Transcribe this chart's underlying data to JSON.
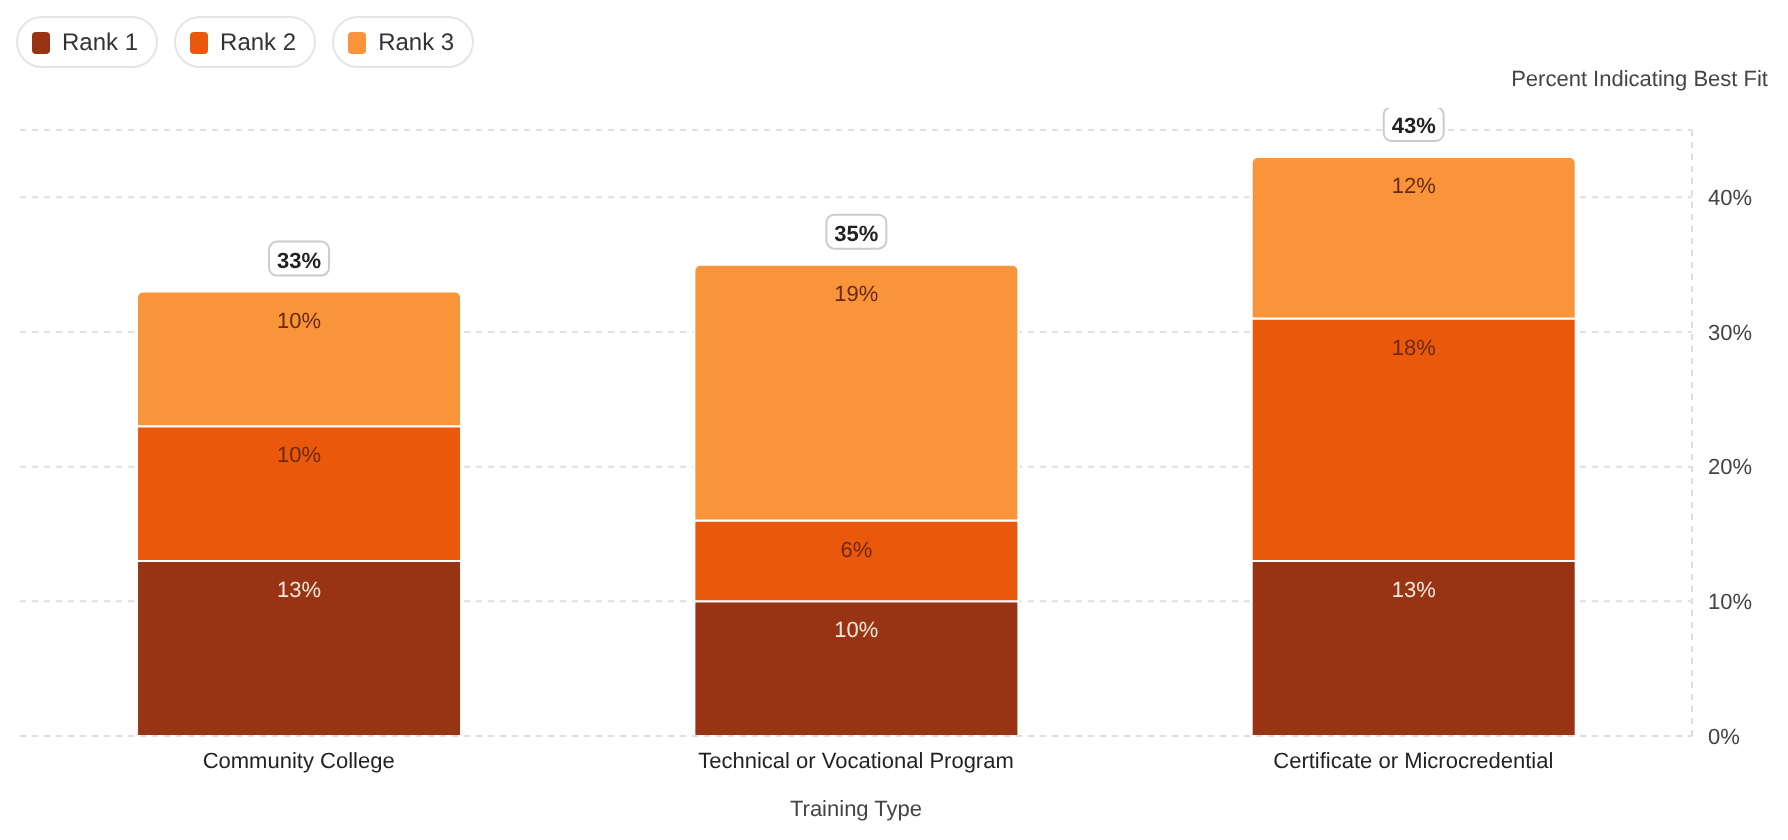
{
  "chart_data": {
    "type": "bar",
    "stacked": true,
    "xlabel": "Training Type",
    "ylabel": "Percent Indicating Best Fit",
    "categories": [
      "Community College",
      "Technical or Vocational Program",
      "Certificate or Microcredential"
    ],
    "series": [
      {
        "name": "Rank 1",
        "color": "#983414",
        "values": [
          13,
          10,
          13
        ],
        "value_labels": [
          "13%",
          "10%",
          "13%"
        ]
      },
      {
        "name": "Rank 2",
        "color": "#ea580c",
        "values": [
          10,
          6,
          18
        ],
        "value_labels": [
          "10%",
          "6%",
          "18%"
        ]
      },
      {
        "name": "Rank 3",
        "color": "#f9943b",
        "values": [
          10,
          19,
          12
        ],
        "value_labels": [
          "10%",
          "19%",
          "12%"
        ]
      }
    ],
    "totals": [
      "33%",
      "35%",
      "43%"
    ],
    "ylim": [
      0,
      45
    ],
    "yticks": [
      {
        "value": 0,
        "label": "0%"
      },
      {
        "value": 10,
        "label": "10%"
      },
      {
        "value": 20,
        "label": "20%"
      },
      {
        "value": 30,
        "label": "30%"
      },
      {
        "value": 40,
        "label": "40%"
      }
    ],
    "grid": "y",
    "legend": "top left"
  }
}
